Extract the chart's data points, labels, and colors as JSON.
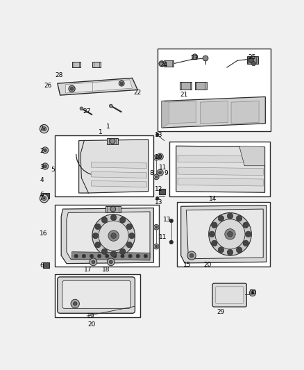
{
  "bg_color": "#f0f0f0",
  "fig_width": 4.38,
  "fig_height": 5.33,
  "dpi": 100
}
